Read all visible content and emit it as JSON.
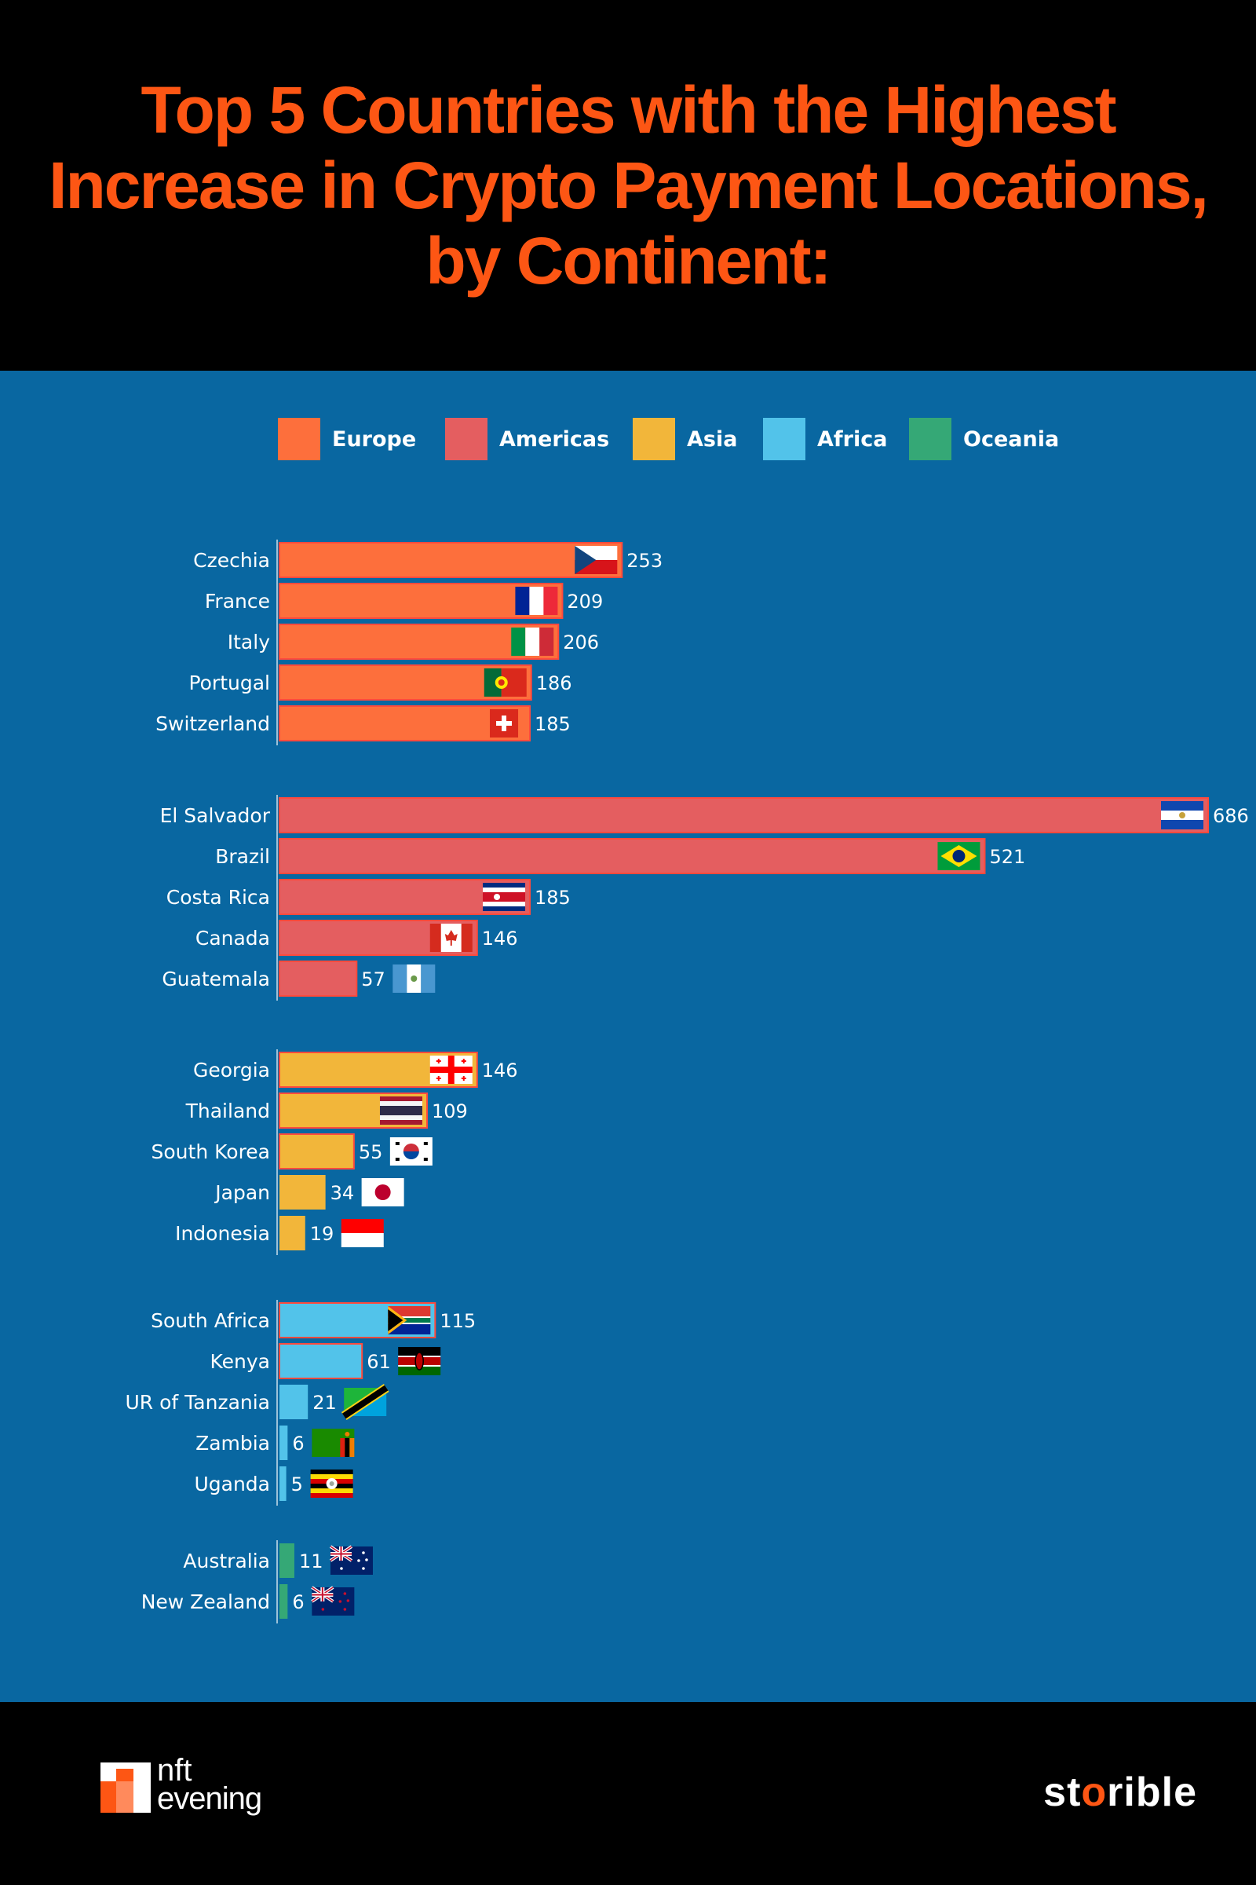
{
  "header": {
    "title": "Top 5 Countries with the Highest\nIncrease in Crypto Payment Locations,\nby Continent:"
  },
  "colors": {
    "header_bg": "#000000",
    "panel_bg": "#0967a1",
    "title": "#fd5614",
    "europe": "#fd6f3c",
    "americas": "#e45e60",
    "asia": "#f2b63a",
    "africa": "#52c3ea",
    "oceania": "#35a876"
  },
  "chart_data": {
    "type": "bar",
    "orientation": "horizontal",
    "title": "Top 5 Countries with the Highest Increase in Crypto Payment Locations, by Continent:",
    "xlabel": "",
    "ylabel": "",
    "xlim": [
      0,
      686
    ],
    "grid": false,
    "legend_placement": "top-center",
    "legend": [
      {
        "name": "Europe",
        "color": "#fd6f3c"
      },
      {
        "name": "Americas",
        "color": "#e45e60"
      },
      {
        "name": "Asia",
        "color": "#f2b63a"
      },
      {
        "name": "Africa",
        "color": "#52c3ea"
      },
      {
        "name": "Oceania",
        "color": "#35a876"
      }
    ],
    "groups": [
      {
        "name": "Europe",
        "color": "#fd6f3c",
        "bars": [
          {
            "label": "Czechia",
            "value": 253,
            "flag": "czechia-flag-icon"
          },
          {
            "label": "France",
            "value": 209,
            "flag": "france-flag-icon"
          },
          {
            "label": "Italy",
            "value": 206,
            "flag": "italy-flag-icon"
          },
          {
            "label": "Portugal",
            "value": 186,
            "flag": "portugal-flag-icon"
          },
          {
            "label": "Switzerland",
            "value": 185,
            "flag": "switzerland-flag-icon"
          }
        ]
      },
      {
        "name": "Americas",
        "color": "#e45e60",
        "bars": [
          {
            "label": "El Salvador",
            "value": 686,
            "flag": "el-salvador-flag-icon"
          },
          {
            "label": "Brazil",
            "value": 521,
            "flag": "brazil-flag-icon"
          },
          {
            "label": "Costa Rica",
            "value": 185,
            "flag": "costa-rica-flag-icon"
          },
          {
            "label": "Canada",
            "value": 146,
            "flag": "canada-flag-icon"
          },
          {
            "label": "Guatemala",
            "value": 57,
            "flag": "guatemala-flag-icon"
          }
        ]
      },
      {
        "name": "Asia",
        "color": "#f2b63a",
        "bars": [
          {
            "label": "Georgia",
            "value": 146,
            "flag": "georgia-flag-icon"
          },
          {
            "label": "Thailand",
            "value": 109,
            "flag": "thailand-flag-icon"
          },
          {
            "label": "South Korea",
            "value": 55,
            "flag": "south-korea-flag-icon"
          },
          {
            "label": "Japan",
            "value": 34,
            "flag": "japan-flag-icon"
          },
          {
            "label": "Indonesia",
            "value": 19,
            "flag": "indonesia-flag-icon"
          }
        ]
      },
      {
        "name": "Africa",
        "color": "#52c3ea",
        "bars": [
          {
            "label": "South Africa",
            "value": 115,
            "flag": "south-africa-flag-icon"
          },
          {
            "label": "Kenya",
            "value": 61,
            "flag": "kenya-flag-icon"
          },
          {
            "label": "UR of Tanzania",
            "value": 21,
            "flag": "tanzania-flag-icon"
          },
          {
            "label": "Zambia",
            "value": 6,
            "flag": "zambia-flag-icon"
          },
          {
            "label": "Uganda",
            "value": 5,
            "flag": "uganda-flag-icon"
          }
        ]
      },
      {
        "name": "Oceania",
        "color": "#35a876",
        "bars": [
          {
            "label": "Australia",
            "value": 11,
            "flag": "australia-flag-icon"
          },
          {
            "label": "New Zealand",
            "value": 6,
            "flag": "new-zealand-flag-icon"
          }
        ]
      }
    ]
  },
  "footer": {
    "logo_left_line1": "nft",
    "logo_left_line2": "evening",
    "logo_right_a": "st",
    "logo_right_o": "o",
    "logo_right_b": "rible"
  }
}
